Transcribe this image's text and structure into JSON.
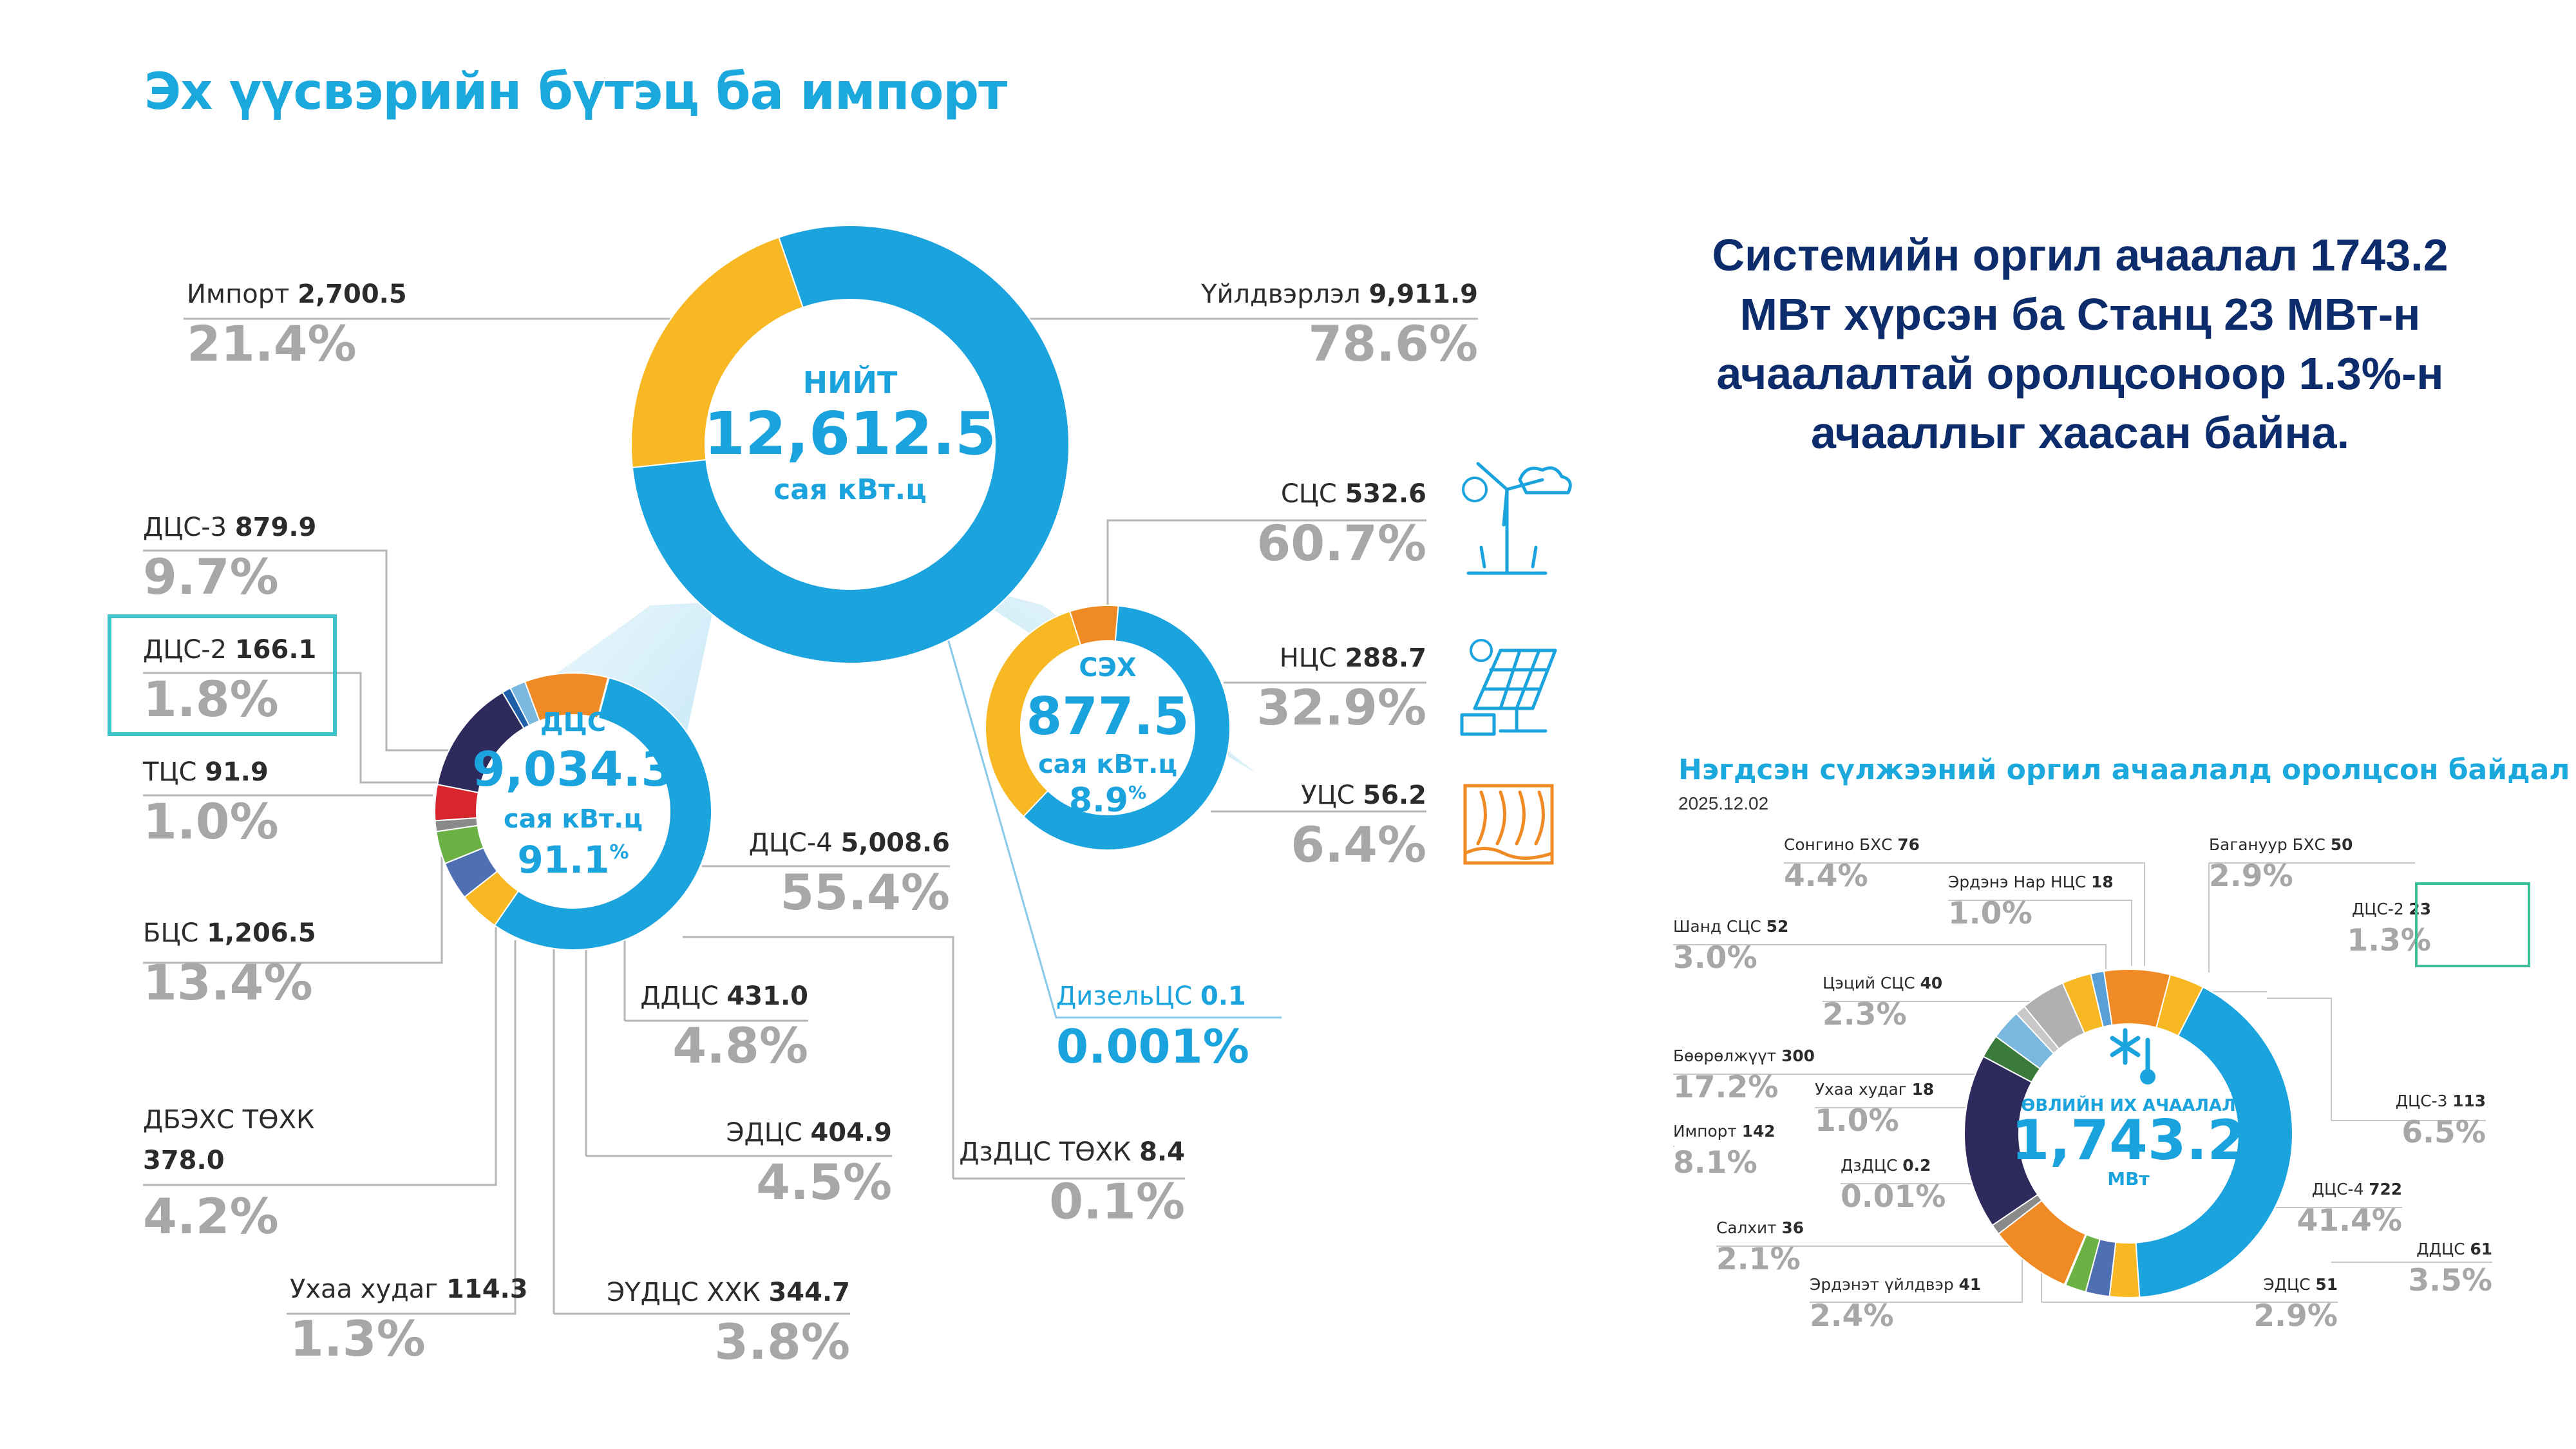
{
  "page": {
    "title": "Эх үүсвэрийн бүтэц ба импорт",
    "note": "Системийн оргил ачаалал 1743.2 МВт хүрсэн ба Станц 23 МВт-н ачаалалтай оролцсоноор 1.3%-н ачааллыг хаасан байна."
  },
  "colors": {
    "blue": "#1ba3dd",
    "yellow": "#f7b823",
    "orange": "#f08a24",
    "navy": "#2e2b5c",
    "red": "#d8262f",
    "green": "#6bb144",
    "slate": "#4f6fb3",
    "title_blue": "#1ba8dc",
    "note_navy": "#0d2c6b",
    "highlight": "#3dc3c9"
  },
  "chart_data": [
    {
      "type": "pie",
      "id": "total",
      "center": {
        "label": "НИЙТ",
        "value": "12,612.5",
        "unit": "сая кВт.ц"
      },
      "slices": [
        {
          "name": "Үйлдвэрлэл",
          "value": 9911.9,
          "value_text": "9,911.9",
          "percent": "78.6%",
          "color": "blue"
        },
        {
          "name": "Импорт",
          "value": 2700.5,
          "value_text": "2,700.5",
          "percent": "21.4%",
          "color": "yellow"
        }
      ]
    },
    {
      "type": "pie",
      "id": "dcs",
      "center": {
        "label": "ДЦС",
        "value": "9,034.3",
        "unit": "сая кВт.ц",
        "share": "91.1",
        "share_unit": "%"
      },
      "slices": [
        {
          "name": "ДЦС-4",
          "value": 5008.6,
          "value_text": "5,008.6",
          "percent": "55.4%",
          "color": "blue"
        },
        {
          "name": "ДДЦС",
          "value": 431.0,
          "value_text": "431.0",
          "percent": "4.8%",
          "color": "yellow"
        },
        {
          "name": "ЭДЦС",
          "value": 404.9,
          "value_text": "404.9",
          "percent": "4.5%",
          "color": "slate"
        },
        {
          "name": "ЭҮДЦС ХХК",
          "value": 344.7,
          "value_text": "344.7",
          "percent": "3.8%",
          "color": "green"
        },
        {
          "name": "Ухаа худаг",
          "value": 114.3,
          "value_text": "114.3",
          "percent": "1.3%",
          "color": "#8a8a8a"
        },
        {
          "name": "ДБЭХС ТӨХК",
          "value": 378.0,
          "value_text": "378.0",
          "percent": "4.2%",
          "color": "red"
        },
        {
          "name": "БЦС",
          "value": 1206.5,
          "value_text": "1,206.5",
          "percent": "13.4%",
          "color": "navy"
        },
        {
          "name": "ТЦС",
          "value": 91.9,
          "value_text": "91.9",
          "percent": "1.0%",
          "color": "#1f5fa8"
        },
        {
          "name": "ДЦС-2",
          "value": 166.1,
          "value_text": "166.1",
          "percent": "1.8%",
          "color": "#7ab8e0"
        },
        {
          "name": "ДЦС-3",
          "value": 879.9,
          "value_text": "879.9",
          "percent": "9.7%",
          "color": "orange"
        },
        {
          "name": "ДзДЦС ТӨХК",
          "value": 8.4,
          "value_text": "8.4",
          "percent": "0.1%",
          "color": "#bbbbbb"
        }
      ]
    },
    {
      "type": "pie",
      "id": "seh",
      "center": {
        "label": "СЭХ",
        "value": "877.5",
        "unit": "сая кВт.ц",
        "share": "8.9",
        "share_unit": "%"
      },
      "slices": [
        {
          "name": "СЦС",
          "value": 532.6,
          "value_text": "532.6",
          "percent": "60.7%",
          "color": "blue"
        },
        {
          "name": "НЦС",
          "value": 288.7,
          "value_text": "288.7",
          "percent": "32.9%",
          "color": "yellow"
        },
        {
          "name": "УЦС",
          "value": 56.2,
          "value_text": "56.2",
          "percent": "6.4%",
          "color": "orange"
        }
      ],
      "extra": {
        "name": "ДизельЦС",
        "value_text": "0.1",
        "percent": "0.001%"
      }
    },
    {
      "type": "pie",
      "id": "peak",
      "title": "Нэгдсэн сүлжээний оргил ачаалалд оролцсон байдал",
      "date": "2025.12.02",
      "center": {
        "label": "ӨВЛИЙН ИХ АЧААЛАЛ",
        "value": "1,743.2",
        "unit": "МВт"
      },
      "slices": [
        {
          "name": "ДЦС-4",
          "value": 722,
          "value_text": "722",
          "percent": "41.4%",
          "color": "blue"
        },
        {
          "name": "ЭДЦС",
          "value": 51,
          "value_text": "51",
          "percent": "2.9%",
          "color": "yellow"
        },
        {
          "name": "Эрдэнэт үйлдвэр",
          "value": 41,
          "value_text": "41",
          "percent": "2.4%",
          "color": "slate"
        },
        {
          "name": "Салхит",
          "value": 36,
          "value_text": "36",
          "percent": "2.1%",
          "color": "green"
        },
        {
          "name": "ДзДЦС",
          "value": 0.2,
          "value_text": "0.2",
          "percent": "0.01%",
          "color": "#999999"
        },
        {
          "name": "Импорт",
          "value": 142,
          "value_text": "142",
          "percent": "8.1%",
          "color": "orange"
        },
        {
          "name": "Ухаа худаг",
          "value": 18,
          "value_text": "18",
          "percent": "1.0%",
          "color": "#8a8a8a"
        },
        {
          "name": "Бөөрөлжүүт",
          "value": 300,
          "value_text": "300",
          "percent": "17.2%",
          "color": "navy"
        },
        {
          "name": "Цэций СЦС",
          "value": 40,
          "value_text": "40",
          "percent": "2.3%",
          "color": "#3a7a3a"
        },
        {
          "name": "Шанд СЦС",
          "value": 52,
          "value_text": "52",
          "percent": "3.0%",
          "color": "#7ab8e0"
        },
        {
          "name": "Эрдэнэ Нар НЦС",
          "value": 18,
          "value_text": "18",
          "percent": "1.0%",
          "color": "#c8c8c8"
        },
        {
          "name": "Сонгино БХС",
          "value": 76,
          "value_text": "76",
          "percent": "4.4%",
          "color": "#b0b0b0"
        },
        {
          "name": "Багануур БХС",
          "value": 50,
          "value_text": "50",
          "percent": "2.9%",
          "color": "yellow"
        },
        {
          "name": "ДЦС-2",
          "value": 23,
          "value_text": "23",
          "percent": "1.3%",
          "color": "#5aa0d8"
        },
        {
          "name": "ДЦС-3",
          "value": 113,
          "value_text": "113",
          "percent": "6.5%",
          "color": "orange"
        },
        {
          "name": "ДДЦС",
          "value": 61,
          "value_text": "61",
          "percent": "3.5%",
          "color": "yellow"
        }
      ]
    }
  ]
}
